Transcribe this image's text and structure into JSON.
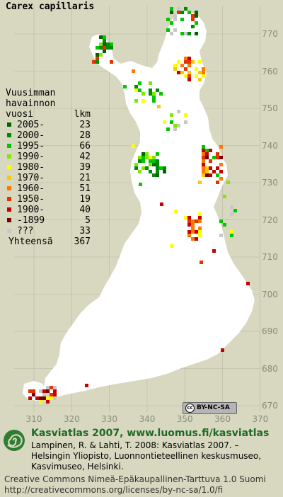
{
  "title": "Carex capillaris",
  "legend": {
    "heading_lines": [
      "Vuusimman",
      "havainnon"
    ],
    "col_label_period": "vuosi",
    "col_label_count": "lkm",
    "entries": [
      {
        "label": "2005-",
        "count": "23",
        "color": "#006400"
      },
      {
        "label": "2000-",
        "count": "28",
        "color": "#008c00"
      },
      {
        "label": "1995-",
        "count": "66",
        "color": "#00c800"
      },
      {
        "label": "1990-",
        "count": "42",
        "color": "#80e800"
      },
      {
        "label": "1980-",
        "count": "39",
        "color": "#ffff00"
      },
      {
        "label": "1970-",
        "count": "21",
        "color": "#ffc800"
      },
      {
        "label": "1960-",
        "count": "51",
        "color": "#ff7800"
      },
      {
        "label": "1950-",
        "count": "19",
        "color": "#e83200"
      },
      {
        "label": "1900-",
        "count": "40",
        "color": "#c80000"
      },
      {
        "label": "-1899",
        "count": "5",
        "color": "#780000"
      },
      {
        "label": "???",
        "count": "33",
        "color": "#c8c8c8"
      }
    ],
    "total_label": "Yhteensä",
    "total_count": "367"
  },
  "axis": {
    "y_ticks": [
      "770",
      "760",
      "750",
      "740",
      "730",
      "720",
      "710",
      "700",
      "690",
      "680",
      "670"
    ],
    "x_ticks": [
      "310",
      "320",
      "330",
      "340",
      "350",
      "360",
      "370"
    ]
  },
  "map": {
    "land_color": "#ffffff",
    "background_color": "#d8d8c0",
    "grid_color": "#b8b8a4"
  },
  "license_badge": {
    "cc": "cc",
    "text": "BY-NC-SA"
  },
  "footer": {
    "logo_icon": "swirl-logo-icon",
    "heading": "Kasviatlas 2007, www.luomus.fi/kasviatlas",
    "citation": "Lampinen, R. & Lahti, T. 2008: Kasviatlas 2007. – Helsingin Yliopisto, Luonnontieteellinen keskusmuseo, Kasvimuseo, Helsinki.",
    "license": "Creative Commons Nimeä-Epäkaupallinen-Tarttuva 1.0 Suomi http://creativecommons.org/licenses/by-nc-sa/1.0/fi"
  }
}
